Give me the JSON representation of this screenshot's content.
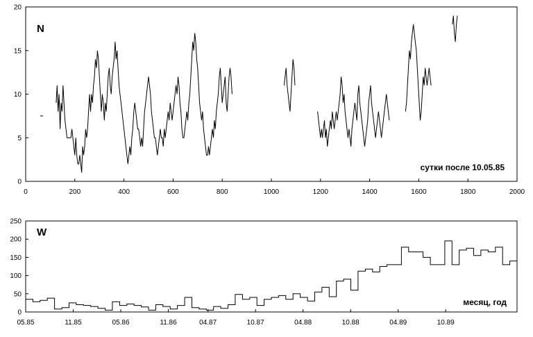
{
  "chart_data": [
    {
      "type": "line",
      "panel_label": "N",
      "annotation": "сутки после 10.05.85",
      "xlim": [
        0,
        2000
      ],
      "ylim": [
        0,
        20
      ],
      "xticks": [
        0,
        200,
        400,
        600,
        800,
        1000,
        1200,
        1400,
        1600,
        1800,
        2000
      ],
      "yticks": [
        0,
        5,
        10,
        15,
        20
      ],
      "isolated_points": [
        [
          65,
          7.5
        ]
      ],
      "segments": [
        [
          [
            124,
            9
          ],
          [
            128,
            11
          ],
          [
            132,
            8
          ],
          [
            136,
            10
          ],
          [
            140,
            6
          ],
          [
            144,
            9
          ],
          [
            148,
            8
          ],
          [
            152,
            11
          ],
          [
            156,
            9
          ],
          [
            160,
            7
          ],
          [
            164,
            6
          ],
          [
            168,
            5
          ],
          [
            172,
            5
          ],
          [
            176,
            5
          ],
          [
            180,
            5
          ],
          [
            184,
            5
          ],
          [
            188,
            6
          ],
          [
            192,
            5
          ],
          [
            196,
            4
          ],
          [
            200,
            3
          ],
          [
            204,
            5
          ],
          [
            208,
            3
          ],
          [
            212,
            2
          ],
          [
            216,
            2
          ],
          [
            220,
            3
          ],
          [
            224,
            2
          ],
          [
            228,
            1
          ],
          [
            232,
            4
          ],
          [
            236,
            3
          ],
          [
            240,
            4
          ],
          [
            244,
            6
          ],
          [
            248,
            5
          ],
          [
            252,
            6
          ],
          [
            256,
            8
          ],
          [
            260,
            10
          ],
          [
            264,
            8
          ],
          [
            268,
            10
          ],
          [
            272,
            9
          ],
          [
            276,
            11
          ],
          [
            280,
            12
          ],
          [
            284,
            14
          ],
          [
            288,
            13
          ],
          [
            292,
            15
          ],
          [
            296,
            14
          ],
          [
            300,
            12
          ],
          [
            304,
            10
          ],
          [
            308,
            8
          ],
          [
            312,
            10
          ],
          [
            316,
            9
          ],
          [
            320,
            7
          ],
          [
            324,
            9
          ],
          [
            328,
            8
          ],
          [
            332,
            10
          ],
          [
            336,
            12
          ],
          [
            340,
            13
          ],
          [
            344,
            11
          ],
          [
            348,
            10
          ],
          [
            352,
            12
          ],
          [
            356,
            13
          ],
          [
            360,
            14
          ],
          [
            364,
            16
          ],
          [
            368,
            14
          ],
          [
            372,
            15
          ],
          [
            376,
            13
          ],
          [
            380,
            11
          ],
          [
            384,
            10
          ],
          [
            388,
            9
          ],
          [
            392,
            8
          ],
          [
            396,
            7
          ],
          [
            400,
            6
          ],
          [
            404,
            5
          ],
          [
            408,
            4
          ],
          [
            412,
            3
          ],
          [
            416,
            2
          ],
          [
            420,
            3
          ],
          [
            424,
            4
          ],
          [
            428,
            3
          ],
          [
            432,
            5
          ],
          [
            436,
            6
          ],
          [
            440,
            8
          ],
          [
            444,
            9
          ],
          [
            448,
            8
          ],
          [
            452,
            7
          ],
          [
            456,
            6
          ],
          [
            460,
            6
          ],
          [
            464,
            5
          ],
          [
            468,
            4
          ],
          [
            472,
            5
          ],
          [
            476,
            4
          ],
          [
            480,
            6
          ],
          [
            484,
            8
          ],
          [
            488,
            9
          ],
          [
            492,
            10
          ],
          [
            496,
            11
          ],
          [
            500,
            12
          ],
          [
            504,
            11
          ],
          [
            508,
            10
          ],
          [
            512,
            8
          ],
          [
            516,
            7
          ],
          [
            520,
            6
          ],
          [
            524,
            5
          ],
          [
            528,
            5
          ],
          [
            532,
            4
          ],
          [
            536,
            3
          ],
          [
            540,
            4
          ],
          [
            544,
            5
          ],
          [
            548,
            6
          ],
          [
            552,
            5
          ],
          [
            556,
            5
          ],
          [
            560,
            4
          ],
          [
            564,
            6
          ],
          [
            568,
            5
          ],
          [
            572,
            6
          ],
          [
            576,
            7
          ],
          [
            580,
            8
          ],
          [
            584,
            7
          ],
          [
            588,
            9
          ],
          [
            592,
            8
          ],
          [
            596,
            7
          ],
          [
            600,
            8
          ],
          [
            604,
            9
          ],
          [
            608,
            10
          ],
          [
            612,
            11
          ],
          [
            616,
            10
          ],
          [
            620,
            12
          ],
          [
            624,
            11
          ],
          [
            628,
            9
          ],
          [
            632,
            8
          ],
          [
            636,
            6
          ],
          [
            640,
            5
          ],
          [
            644,
            5
          ],
          [
            648,
            6
          ],
          [
            652,
            7
          ],
          [
            656,
            8
          ],
          [
            660,
            7
          ],
          [
            664,
            9
          ],
          [
            668,
            10
          ],
          [
            672,
            12
          ],
          [
            676,
            14
          ],
          [
            680,
            16
          ],
          [
            684,
            15
          ],
          [
            688,
            17
          ],
          [
            692,
            16
          ],
          [
            696,
            14
          ],
          [
            700,
            13
          ],
          [
            704,
            11
          ],
          [
            708,
            9
          ],
          [
            712,
            8
          ],
          [
            716,
            7
          ],
          [
            720,
            8
          ],
          [
            724,
            6
          ],
          [
            728,
            5
          ],
          [
            732,
            4
          ],
          [
            736,
            3
          ],
          [
            740,
            3
          ],
          [
            744,
            4
          ],
          [
            748,
            3
          ],
          [
            752,
            4
          ],
          [
            756,
            5
          ],
          [
            760,
            6
          ],
          [
            764,
            5
          ],
          [
            768,
            7
          ],
          [
            772,
            6
          ],
          [
            776,
            8
          ],
          [
            780,
            9
          ],
          [
            784,
            10
          ],
          [
            788,
            12
          ],
          [
            792,
            13
          ],
          [
            796,
            11
          ],
          [
            800,
            9
          ],
          [
            804,
            10
          ],
          [
            808,
            11
          ],
          [
            812,
            12
          ],
          [
            816,
            9
          ],
          [
            820,
            8
          ],
          [
            824,
            10
          ],
          [
            828,
            12
          ],
          [
            832,
            13
          ],
          [
            836,
            12
          ],
          [
            840,
            10
          ]
        ],
        [
          [
            1052,
            11
          ],
          [
            1056,
            12
          ],
          [
            1060,
            13
          ],
          [
            1064,
            11
          ],
          [
            1068,
            10
          ],
          [
            1072,
            9
          ],
          [
            1076,
            8
          ],
          [
            1080,
            10
          ],
          [
            1084,
            12
          ],
          [
            1088,
            14
          ],
          [
            1092,
            13
          ],
          [
            1096,
            11
          ]
        ],
        [
          [
            1188,
            8
          ],
          [
            1192,
            7
          ],
          [
            1196,
            6
          ],
          [
            1200,
            5
          ],
          [
            1204,
            6
          ],
          [
            1208,
            5
          ],
          [
            1212,
            6
          ],
          [
            1216,
            7
          ],
          [
            1220,
            5
          ],
          [
            1224,
            6
          ],
          [
            1228,
            4
          ],
          [
            1232,
            5
          ],
          [
            1236,
            6
          ],
          [
            1240,
            7
          ],
          [
            1244,
            6
          ],
          [
            1248,
            8
          ],
          [
            1252,
            7
          ],
          [
            1256,
            6
          ],
          [
            1260,
            7
          ],
          [
            1264,
            8
          ],
          [
            1268,
            7
          ],
          [
            1272,
            8
          ],
          [
            1276,
            9
          ],
          [
            1280,
            10
          ],
          [
            1284,
            12
          ],
          [
            1288,
            11
          ],
          [
            1292,
            9
          ],
          [
            1296,
            10
          ],
          [
            1300,
            8
          ],
          [
            1304,
            7
          ],
          [
            1308,
            6
          ],
          [
            1312,
            5
          ],
          [
            1316,
            6
          ],
          [
            1320,
            5
          ],
          [
            1324,
            4
          ],
          [
            1328,
            6
          ],
          [
            1332,
            7
          ],
          [
            1336,
            8
          ],
          [
            1340,
            9
          ],
          [
            1344,
            8
          ],
          [
            1348,
            7
          ],
          [
            1352,
            10
          ],
          [
            1356,
            11
          ],
          [
            1360,
            9
          ],
          [
            1364,
            8
          ],
          [
            1368,
            7
          ],
          [
            1372,
            6
          ],
          [
            1376,
            5
          ],
          [
            1380,
            4
          ],
          [
            1384,
            5
          ],
          [
            1388,
            6
          ],
          [
            1392,
            7
          ],
          [
            1396,
            9
          ],
          [
            1400,
            10
          ],
          [
            1404,
            11
          ],
          [
            1408,
            9
          ],
          [
            1412,
            8
          ],
          [
            1416,
            7
          ],
          [
            1420,
            6
          ],
          [
            1424,
            5
          ],
          [
            1428,
            6
          ],
          [
            1432,
            7
          ],
          [
            1436,
            8
          ],
          [
            1440,
            7
          ],
          [
            1444,
            6
          ],
          [
            1448,
            5
          ],
          [
            1452,
            6
          ],
          [
            1456,
            7
          ],
          [
            1460,
            8
          ],
          [
            1464,
            9
          ],
          [
            1468,
            10
          ],
          [
            1472,
            9
          ],
          [
            1476,
            8
          ],
          [
            1480,
            7
          ]
        ],
        [
          [
            1546,
            8
          ],
          [
            1550,
            9
          ],
          [
            1554,
            11
          ],
          [
            1558,
            13
          ],
          [
            1562,
            15
          ],
          [
            1566,
            14
          ],
          [
            1570,
            16
          ],
          [
            1574,
            17
          ],
          [
            1578,
            18
          ],
          [
            1582,
            17
          ],
          [
            1586,
            16
          ],
          [
            1590,
            15
          ],
          [
            1594,
            13
          ],
          [
            1598,
            11
          ],
          [
            1602,
            9
          ],
          [
            1606,
            7
          ],
          [
            1610,
            8
          ],
          [
            1614,
            10
          ],
          [
            1618,
            12
          ],
          [
            1622,
            11
          ],
          [
            1626,
            13
          ],
          [
            1630,
            12
          ],
          [
            1634,
            11
          ],
          [
            1638,
            12
          ],
          [
            1642,
            13
          ],
          [
            1646,
            12
          ],
          [
            1650,
            11
          ]
        ],
        [
          [
            1737,
            18
          ],
          [
            1741,
            19
          ],
          [
            1745,
            17
          ],
          [
            1749,
            16
          ],
          [
            1753,
            18
          ],
          [
            1757,
            19
          ]
        ]
      ]
    },
    {
      "type": "line",
      "panel_label": "W",
      "annotation": "месяц, год",
      "ylim": [
        0,
        250
      ],
      "yticks": [
        0,
        50,
        100,
        150,
        200,
        250
      ],
      "xticklabels": [
        "05.85",
        "11.85",
        "05.86",
        "11.86",
        "04.87",
        "10.87",
        "04.88",
        "10.88",
        "04.89",
        "10.89"
      ],
      "xtick_positions": [
        0,
        6,
        12,
        18,
        23,
        29,
        35,
        41,
        47,
        53
      ],
      "xlim": [
        0,
        62
      ],
      "monthly_values": [
        35,
        28,
        32,
        38,
        8,
        12,
        25,
        20,
        18,
        15,
        10,
        5,
        28,
        18,
        22,
        18,
        14,
        5,
        20,
        15,
        8,
        18,
        40,
        12,
        8,
        5,
        15,
        10,
        20,
        48,
        35,
        40,
        18,
        35,
        40,
        45,
        35,
        50,
        40,
        30,
        55,
        68,
        42,
        85,
        90,
        60,
        112,
        118,
        110,
        125,
        130,
        130,
        178,
        165,
        165,
        150,
        130,
        130,
        195,
        130,
        170,
        175,
        155,
        170,
        165,
        178,
        130,
        140
      ],
      "monthly_x_start": -6
    }
  ]
}
